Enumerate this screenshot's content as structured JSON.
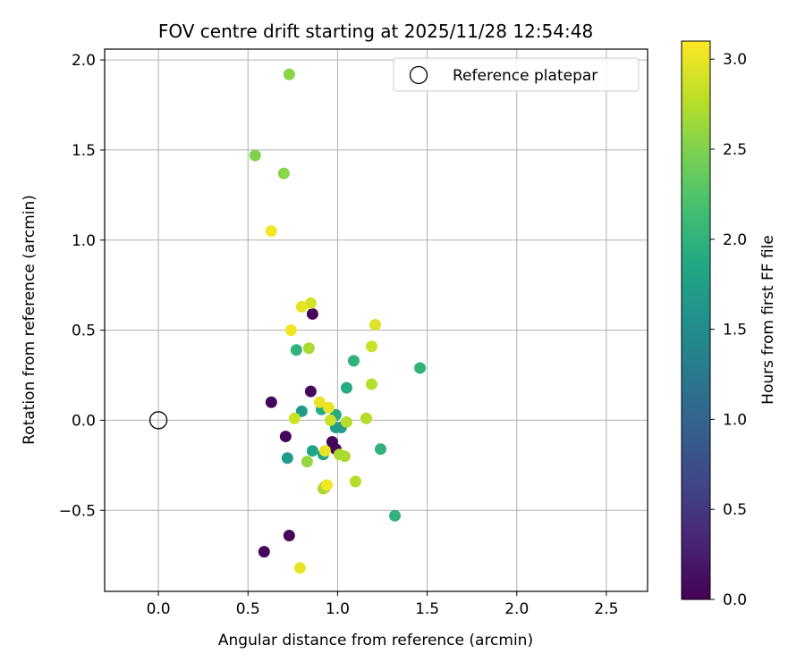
{
  "chart_data": {
    "type": "scatter",
    "title": "FOV centre drift starting at 2025/11/28 12:54:48",
    "xlabel": "Angular distance from reference (arcmin)",
    "ylabel": "Rotation from reference (arcmin)",
    "xlim": [
      -0.3,
      2.73
    ],
    "ylim": [
      -0.95,
      2.06
    ],
    "xticks": [
      0.0,
      0.5,
      1.0,
      1.5,
      2.0,
      2.5
    ],
    "xtick_labels": [
      "0.0",
      "0.5",
      "1.0",
      "1.5",
      "2.0",
      "2.5"
    ],
    "yticks": [
      -0.5,
      0.0,
      0.5,
      1.0,
      1.5,
      2.0
    ],
    "ytick_labels": [
      "−0.5",
      "0.0",
      "0.5",
      "1.0",
      "1.5",
      "2.0"
    ],
    "grid": true,
    "legend": {
      "placement": "top-right",
      "label": "Reference platepar"
    },
    "reference_point": {
      "x": 0.0,
      "y": 0.0
    },
    "colorbar": {
      "label": "Hours from first FF file",
      "colormap": "viridis",
      "range": [
        0.0,
        3.1
      ],
      "ticks": [
        0.0,
        0.5,
        1.0,
        1.5,
        2.0,
        2.5,
        3.0
      ],
      "tick_labels": [
        "0.0",
        "0.5",
        "1.0",
        "1.5",
        "2.0",
        "2.5",
        "3.0"
      ]
    },
    "points": [
      {
        "x": 0.63,
        "y": 0.1,
        "c": 0.05
      },
      {
        "x": 0.71,
        "y": -0.09,
        "c": 0.05
      },
      {
        "x": 0.59,
        "y": -0.73,
        "c": 0.05
      },
      {
        "x": 0.73,
        "y": -0.64,
        "c": 0.05
      },
      {
        "x": 0.86,
        "y": 0.59,
        "c": 0.05
      },
      {
        "x": 0.85,
        "y": 0.16,
        "c": 0.05
      },
      {
        "x": 0.97,
        "y": -0.12,
        "c": 0.05
      },
      {
        "x": 0.99,
        "y": -0.16,
        "c": 0.05
      },
      {
        "x": 0.93,
        "y": -0.37,
        "c": 0.1
      },
      {
        "x": 0.72,
        "y": -0.21,
        "c": 1.7
      },
      {
        "x": 0.8,
        "y": 0.05,
        "c": 1.7
      },
      {
        "x": 0.86,
        "y": -0.17,
        "c": 1.8
      },
      {
        "x": 0.92,
        "y": -0.19,
        "c": 1.8
      },
      {
        "x": 0.91,
        "y": 0.06,
        "c": 1.9
      },
      {
        "x": 0.99,
        "y": 0.03,
        "c": 1.9
      },
      {
        "x": 0.99,
        "y": -0.04,
        "c": 1.7
      },
      {
        "x": 1.02,
        "y": -0.04,
        "c": 1.7
      },
      {
        "x": 1.05,
        "y": 0.18,
        "c": 1.9
      },
      {
        "x": 1.09,
        "y": 0.33,
        "c": 2.0
      },
      {
        "x": 0.77,
        "y": 0.39,
        "c": 2.0
      },
      {
        "x": 1.24,
        "y": -0.16,
        "c": 2.0
      },
      {
        "x": 1.32,
        "y": -0.53,
        "c": 2.0
      },
      {
        "x": 1.46,
        "y": 0.29,
        "c": 2.0
      },
      {
        "x": 0.73,
        "y": 1.92,
        "c": 2.55
      },
      {
        "x": 0.54,
        "y": 1.47,
        "c": 2.5
      },
      {
        "x": 0.7,
        "y": 1.37,
        "c": 2.55
      },
      {
        "x": 0.83,
        "y": -0.23,
        "c": 2.6
      },
      {
        "x": 0.84,
        "y": 0.4,
        "c": 2.7
      },
      {
        "x": 0.85,
        "y": 0.65,
        "c": 2.9
      },
      {
        "x": 0.8,
        "y": 0.63,
        "c": 3.0
      },
      {
        "x": 0.74,
        "y": 0.5,
        "c": 3.05
      },
      {
        "x": 0.63,
        "y": 1.05,
        "c": 3.05
      },
      {
        "x": 0.76,
        "y": 0.01,
        "c": 2.85
      },
      {
        "x": 0.79,
        "y": -0.82,
        "c": 3.0
      },
      {
        "x": 0.9,
        "y": 0.1,
        "c": 3.0
      },
      {
        "x": 0.95,
        "y": 0.07,
        "c": 3.0
      },
      {
        "x": 0.96,
        "y": 0.0,
        "c": 2.85
      },
      {
        "x": 0.92,
        "y": -0.38,
        "c": 2.7
      },
      {
        "x": 0.94,
        "y": -0.36,
        "c": 3.05
      },
      {
        "x": 0.93,
        "y": -0.17,
        "c": 3.0
      },
      {
        "x": 1.01,
        "y": -0.19,
        "c": 2.7
      },
      {
        "x": 1.04,
        "y": -0.2,
        "c": 2.7
      },
      {
        "x": 1.05,
        "y": -0.01,
        "c": 2.75
      },
      {
        "x": 1.1,
        "y": -0.34,
        "c": 2.75
      },
      {
        "x": 1.16,
        "y": 0.01,
        "c": 2.75
      },
      {
        "x": 1.19,
        "y": 0.2,
        "c": 2.75
      },
      {
        "x": 1.19,
        "y": 0.41,
        "c": 2.85
      },
      {
        "x": 1.21,
        "y": 0.53,
        "c": 2.95
      }
    ]
  }
}
